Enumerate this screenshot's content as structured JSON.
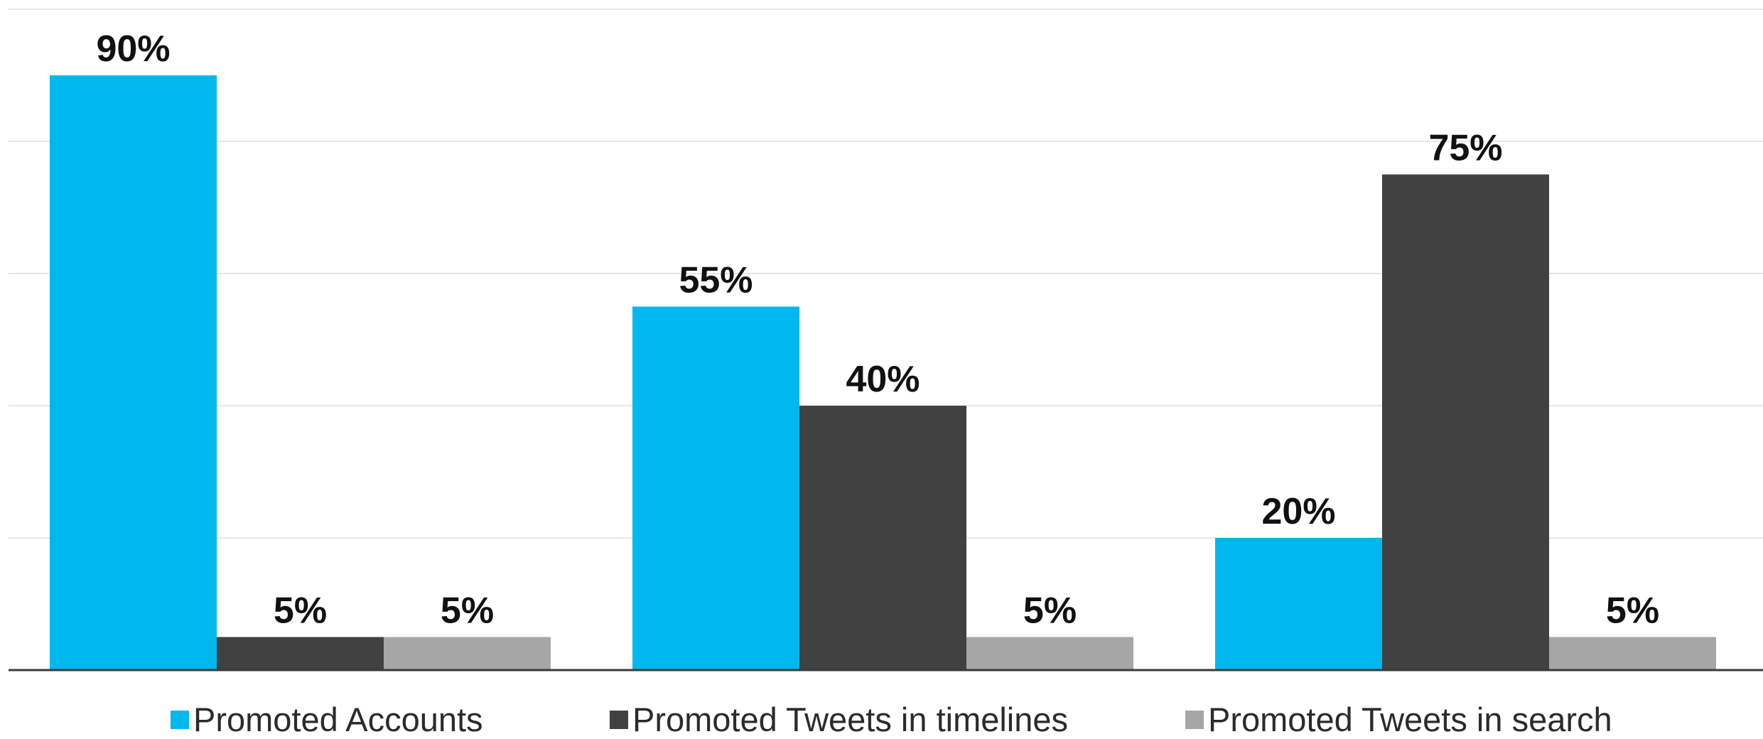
{
  "chart_data": {
    "type": "bar",
    "title": "",
    "xlabel": "",
    "ylabel": "",
    "categories": [
      "",
      "",
      ""
    ],
    "ylim": [
      0,
      100
    ],
    "grid": true,
    "legend_position": "bottom",
    "series": [
      {
        "name": "Promoted Accounts",
        "color": "#00b8ee",
        "values": [
          90,
          55,
          20
        ],
        "labels": [
          "90%",
          "55%",
          "20%"
        ]
      },
      {
        "name": "Promoted Tweets in timelines",
        "color": "#414141",
        "values": [
          5,
          40,
          75
        ],
        "labels": [
          "5%",
          "40%",
          "75%"
        ]
      },
      {
        "name": "Promoted Tweets in search",
        "color": "#a6a6a6",
        "values": [
          5,
          5,
          5
        ],
        "labels": [
          "5%",
          "5%",
          "5%"
        ]
      }
    ]
  }
}
